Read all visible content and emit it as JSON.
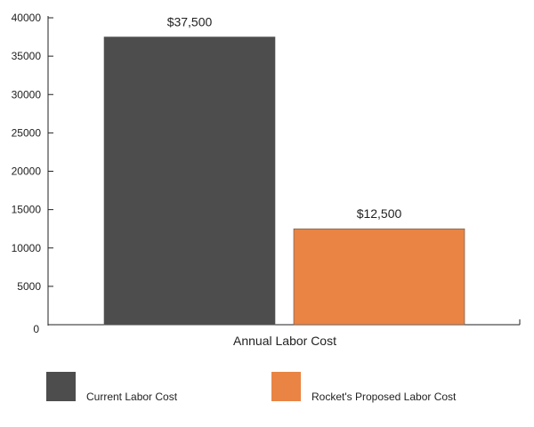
{
  "chart_data": {
    "type": "bar",
    "xlabel": "Annual Labor Cost",
    "ylabel": "",
    "ylim": [
      0,
      40000
    ],
    "yticks": [
      0,
      5000,
      10000,
      15000,
      20000,
      25000,
      30000,
      35000,
      40000
    ],
    "grid": false,
    "legend_position": "bottom",
    "series": [
      {
        "name": "Current Labor Cost",
        "value": 37500,
        "label": "$37,500",
        "color": "#4d4d4d"
      },
      {
        "name": "Rocket's Proposed Labor Cost",
        "value": 12500,
        "label": "$12,500",
        "color": "#e98444"
      }
    ]
  }
}
